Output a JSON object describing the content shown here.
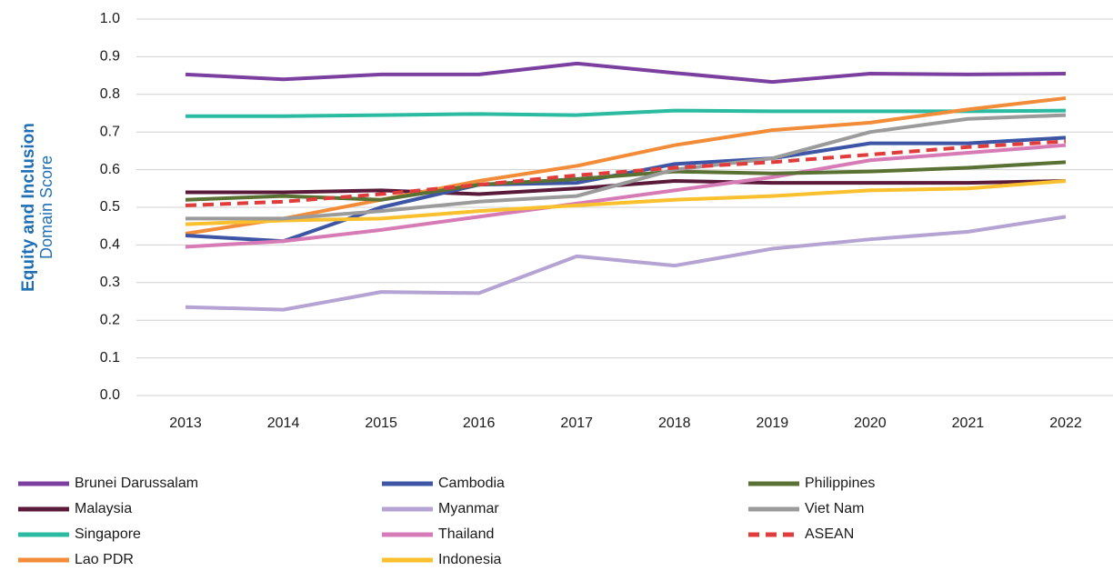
{
  "chart_data": {
    "type": "line",
    "ylabel": "Equity and Inclusion",
    "ylabel_sub": "Domain Score",
    "categories": [
      "2013",
      "2014",
      "2015",
      "2016",
      "2017",
      "2018",
      "2019",
      "2020",
      "2021",
      "2022"
    ],
    "ylim": [
      0,
      1
    ],
    "yticks": [
      {
        "value": 0,
        "label": "0.0"
      },
      0.1,
      0.2,
      0.3,
      0.4,
      0.5,
      0.6,
      0.7,
      0.8,
      0.9,
      {
        "value": 1,
        "label": "1.0"
      }
    ],
    "grid": true,
    "series": [
      {
        "name": "Brunei Darussalam",
        "color": "#7b3fa0",
        "values": [
          0.853,
          0.84,
          0.853,
          0.853,
          0.882,
          0.857,
          0.833,
          0.855,
          0.853,
          0.855
        ]
      },
      {
        "name": "Malaysia",
        "color": "#5a1a3a",
        "values": [
          0.54,
          0.54,
          0.545,
          0.535,
          0.55,
          0.57,
          0.565,
          0.565,
          0.565,
          0.57
        ]
      },
      {
        "name": "Singapore",
        "color": "#2bbba1",
        "values": [
          0.742,
          0.742,
          0.745,
          0.748,
          0.745,
          0.757,
          0.755,
          0.755,
          0.755,
          0.757
        ]
      },
      {
        "name": "Lao PDR",
        "color": "#f28c38",
        "values": [
          0.43,
          0.47,
          0.52,
          0.57,
          0.61,
          0.665,
          0.705,
          0.725,
          0.76,
          0.79
        ]
      },
      {
        "name": "Cambodia",
        "color": "#3d55a4",
        "values": [
          0.425,
          0.41,
          0.5,
          0.56,
          0.565,
          0.615,
          0.63,
          0.67,
          0.67,
          0.685
        ]
      },
      {
        "name": "Myanmar",
        "color": "#b4a3d3",
        "values": [
          0.235,
          0.228,
          0.275,
          0.272,
          0.37,
          0.345,
          0.39,
          0.415,
          0.435,
          0.475
        ]
      },
      {
        "name": "Thailand",
        "color": "#d67bb5",
        "values": [
          0.395,
          0.41,
          0.44,
          0.475,
          0.51,
          0.545,
          0.58,
          0.625,
          0.645,
          0.665
        ]
      },
      {
        "name": "Indonesia",
        "color": "#fbc02d",
        "values": [
          0.455,
          0.465,
          0.47,
          0.49,
          0.505,
          0.52,
          0.53,
          0.545,
          0.55,
          0.57
        ]
      },
      {
        "name": "Philippines",
        "color": "#5a7134",
        "values": [
          0.52,
          0.53,
          0.52,
          0.56,
          0.575,
          0.595,
          0.59,
          0.595,
          0.605,
          0.62
        ]
      },
      {
        "name": "Viet Nam",
        "color": "#9b9b9b",
        "values": [
          0.47,
          0.47,
          0.49,
          0.515,
          0.53,
          0.6,
          0.63,
          0.7,
          0.735,
          0.745
        ]
      },
      {
        "name": "ASEAN",
        "color": "#e03c3c",
        "dashed": true,
        "values": [
          0.505,
          0.515,
          0.535,
          0.56,
          0.585,
          0.605,
          0.62,
          0.64,
          0.66,
          0.675
        ]
      }
    ]
  }
}
